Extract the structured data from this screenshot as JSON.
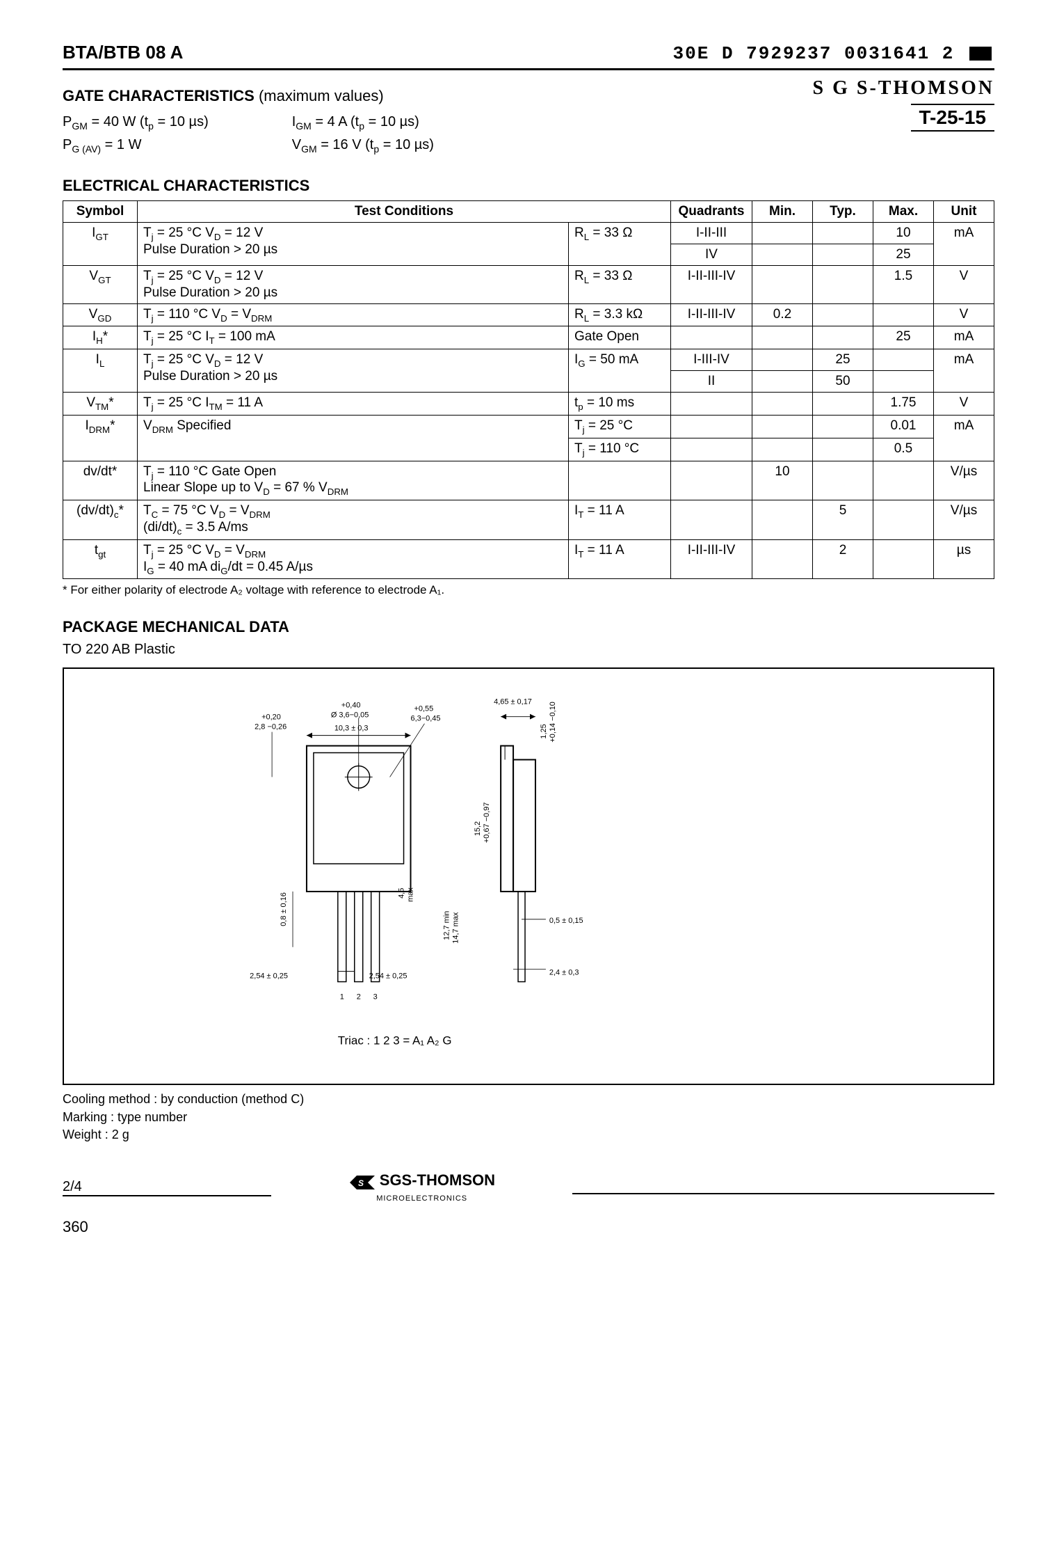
{
  "header": {
    "part": "BTA/BTB 08 A",
    "codes": "30E  D      7929237 0031641 2",
    "sgs": "S G S-THOMSON",
    "t25": "T-25-15"
  },
  "gate": {
    "title": "GATE CHARACTERISTICS",
    "paren": "(maximum values)",
    "col1_l1": "P_GM = 40 W (t_p = 10 µs)",
    "col1_l2": "P_G (AV) = 1 W",
    "col2_l1": "I_GM = 4 A (t_p = 10 µs)",
    "col2_l2": "V_GM = 16 V (t_p = 10 µs)"
  },
  "elec": {
    "title": "ELECTRICAL  CHARACTERISTICS",
    "headers": [
      "Symbol",
      "Test Conditions",
      "Quadrants",
      "Min.",
      "Typ.",
      "Max.",
      "Unit"
    ],
    "rows": [
      {
        "sym": "I_GT",
        "tc_main": "T_j = 25 °C      V_D = 12 V\nPulse Duration > 20 µs",
        "tc_right": "R_L = 33 Ω",
        "sub": [
          {
            "quad": "I-II-III",
            "min": "",
            "typ": "",
            "max": "10",
            "unit": "mA"
          },
          {
            "quad": "IV",
            "min": "",
            "typ": "",
            "max": "25",
            "unit": ""
          }
        ]
      },
      {
        "sym": "V_GT",
        "tc_main": "T_j = 25 °C      V_D = 12 V\nPulse Duration > 20 µs",
        "tc_right": "R_L = 33 Ω",
        "sub": [
          {
            "quad": "I-II-III-IV",
            "min": "",
            "typ": "",
            "max": "1.5",
            "unit": "V"
          }
        ]
      },
      {
        "sym": "V_GD",
        "tc_main": "T_j = 110 °C      V_D = V_DRM",
        "tc_right": "R_L = 3.3 kΩ",
        "sub": [
          {
            "quad": "I-II-III-IV",
            "min": "0.2",
            "typ": "",
            "max": "",
            "unit": "V"
          }
        ]
      },
      {
        "sym": "I_H*",
        "tc_main": "T_j = 25 °C      I_T = 100 mA",
        "tc_right": "Gate Open",
        "sub": [
          {
            "quad": "",
            "min": "",
            "typ": "",
            "max": "25",
            "unit": "mA"
          }
        ]
      },
      {
        "sym": "I_L",
        "tc_main": "T_j = 25 °C      V_D = 12 V\nPulse Duration > 20 µs",
        "tc_right": "I_G = 50 mA",
        "sub": [
          {
            "quad": "I-III-IV",
            "min": "",
            "typ": "25",
            "max": "",
            "unit": "mA"
          },
          {
            "quad": "II",
            "min": "",
            "typ": "50",
            "max": "",
            "unit": ""
          }
        ]
      },
      {
        "sym": "V_TM*",
        "tc_main": "T_j = 25 °C      I_TM = 11 A",
        "tc_right": "t_p = 10 ms",
        "sub": [
          {
            "quad": "",
            "min": "",
            "typ": "",
            "max": "1.75",
            "unit": "V"
          }
        ]
      },
      {
        "sym": "I_DRM*",
        "tc_main": "V_DRM Specified",
        "tc_right": "",
        "split": true,
        "sub": [
          {
            "quad": "",
            "min": "",
            "typ": "",
            "max": "0.01",
            "unit": "mA",
            "tcr": "T_j = 25 °C"
          },
          {
            "quad": "",
            "min": "",
            "typ": "",
            "max": "0.5",
            "unit": "",
            "tcr": "T_j = 110 °C"
          }
        ]
      },
      {
        "sym": "dv/dt*",
        "tc_main": "T_j = 110 °C      Gate Open\nLinear Slope up to V_D = 67 % V_DRM",
        "tc_right": "",
        "sub": [
          {
            "quad": "",
            "min": "10",
            "typ": "",
            "max": "",
            "unit": "V/µs"
          }
        ]
      },
      {
        "sym": "(dv/dt)_c*",
        "tc_main": "T_C = 75 °C      V_D = V_DRM\n(di/dt)_c = 3.5 A/ms",
        "tc_right": "I_T = 11 A",
        "sub": [
          {
            "quad": "",
            "min": "",
            "typ": "5",
            "max": "",
            "unit": "V/µs"
          }
        ]
      },
      {
        "sym": "t_gt",
        "tc_main": "T_j = 25 °C      V_D = V_DRM\nI_G = 40 mA      di_G/dt = 0.45 A/µs",
        "tc_right": "I_T = 11 A",
        "sub": [
          {
            "quad": "I-II-III-IV",
            "min": "",
            "typ": "2",
            "max": "",
            "unit": "µs"
          }
        ]
      }
    ],
    "footnote": "* For either polarity of electrode A₂ voltage with reference to electrode A₁."
  },
  "pkg": {
    "title": "PACKAGE MECHANICAL DATA",
    "sub": "TO 220 AB  Plastic",
    "dims": {
      "d1": "+0,20\n2,8 −0,26",
      "d2": "+0,40\nØ 3,6−0,05",
      "d3": "10,3 ± 0,3",
      "d4": "+0,55\n6,3−0,45",
      "d5": "4,65 ± 0,17",
      "d6": "+0,14\n1,25 −0,10",
      "d7": "+0,67\n15,2 −0,97",
      "d8": "4,5\nmax",
      "d9": "0,8 ± 0,16",
      "d10": "12,7 min\n14,7 max",
      "d11": "0,5 ± 0,15",
      "d12": "2,54 ± 0,25",
      "d13": "2,54 ± 0,25",
      "d14": "2,4 ± 0,3",
      "pins": "1  2  3",
      "triac": "Triac     : 1 2 3 = A₁ A₂ G"
    },
    "cooling": "Cooling method : by conduction (method C)\nMarking : type number\nWeight : 2 g"
  },
  "footer": {
    "page": "2/4",
    "logo": "SGS-THOMSON",
    "logo_sub": "MICROELECTRONICS",
    "pagenum": "360"
  }
}
